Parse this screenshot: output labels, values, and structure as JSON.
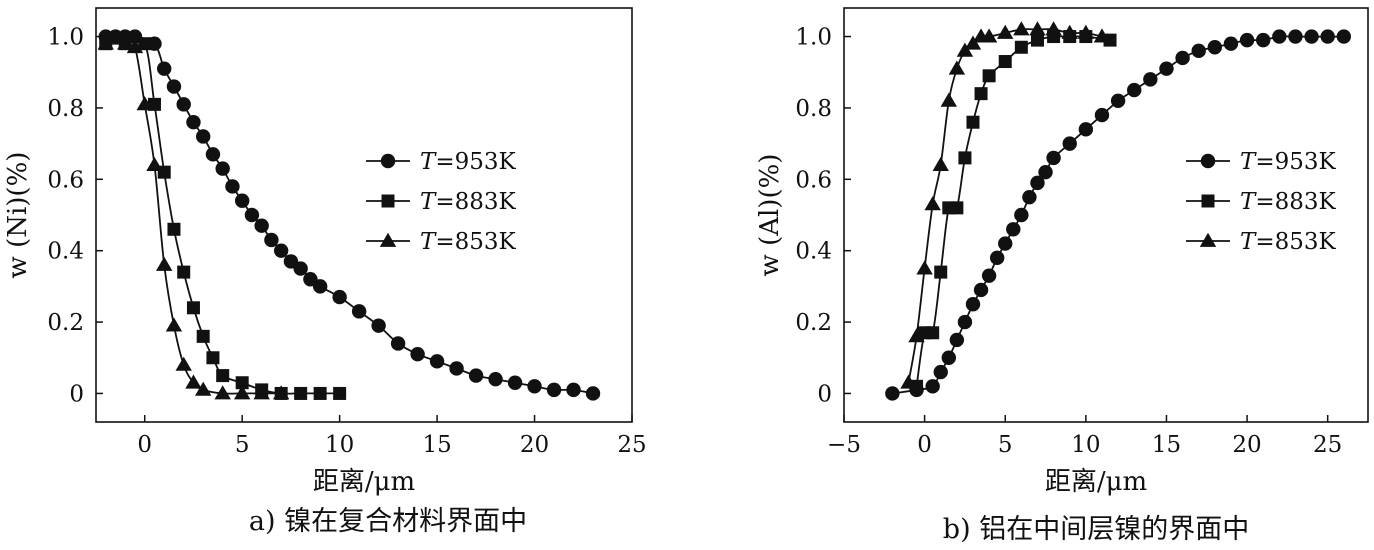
{
  "chart_data": [
    {
      "type": "line",
      "caption": "a) 镍在复合材料界面中",
      "xlabel": "距离/μm",
      "ylabel": "w (Ni)(%)",
      "xlim": [
        -2.5,
        25
      ],
      "ylim": [
        -0.08,
        1.08
      ],
      "xticks": [
        0,
        5,
        10,
        15,
        20,
        25
      ],
      "xtick_labels": [
        "0",
        "5",
        "10",
        "15",
        "20",
        "25"
      ],
      "yticks": [
        0,
        0.2,
        0.4,
        0.6,
        0.8,
        1.0
      ],
      "ytick_labels": [
        "0",
        "0.2",
        "0.4",
        "0.6",
        "0.8",
        "1.0"
      ],
      "legend_position": "right-middle",
      "series": [
        {
          "name": "T=953K",
          "marker": "circle",
          "x": [
            -2,
            -1.5,
            -1,
            -0.5,
            0.5,
            1,
            1.5,
            2,
            2.5,
            3,
            3.5,
            4,
            4.5,
            5,
            5.5,
            6,
            6.5,
            7,
            7.5,
            8,
            8.5,
            9,
            10,
            11,
            12,
            13,
            14,
            15,
            16,
            17,
            18,
            19,
            20,
            21,
            22,
            23
          ],
          "y": [
            1.0,
            1.0,
            1.0,
            1.0,
            0.98,
            0.91,
            0.86,
            0.81,
            0.76,
            0.72,
            0.67,
            0.63,
            0.58,
            0.54,
            0.5,
            0.47,
            0.43,
            0.4,
            0.37,
            0.35,
            0.32,
            0.3,
            0.27,
            0.23,
            0.19,
            0.14,
            0.11,
            0.09,
            0.07,
            0.05,
            0.04,
            0.03,
            0.02,
            0.01,
            0.01,
            0.0
          ]
        },
        {
          "name": "T=883K",
          "marker": "square",
          "x": [
            -2,
            -1,
            0,
            0.5,
            1,
            1.5,
            2,
            2.5,
            3,
            3.5,
            4,
            5,
            6,
            7,
            8,
            9,
            10
          ],
          "y": [
            0.98,
            0.98,
            0.98,
            0.81,
            0.62,
            0.46,
            0.34,
            0.24,
            0.16,
            0.1,
            0.05,
            0.03,
            0.01,
            0.0,
            0.0,
            0.0,
            0.0
          ]
        },
        {
          "name": "T=853K",
          "marker": "triangle",
          "x": [
            -2,
            -1,
            -0.5,
            0,
            0.5,
            1,
            1.5,
            2,
            2.5,
            3,
            4,
            5,
            6,
            7
          ],
          "y": [
            0.98,
            0.98,
            0.97,
            0.81,
            0.64,
            0.36,
            0.19,
            0.08,
            0.03,
            0.01,
            0.0,
            0.0,
            0.0,
            0.0
          ]
        }
      ]
    },
    {
      "type": "line",
      "caption": "b) 铝在中间层镍的界面中",
      "xlabel": "距离/μm",
      "ylabel": "w (Al)(%)",
      "xlim": [
        -5,
        27.5
      ],
      "ylim": [
        -0.08,
        1.08
      ],
      "xticks": [
        -5,
        0,
        5,
        10,
        15,
        20,
        25
      ],
      "xtick_labels": [
        "−5",
        "0",
        "5",
        "10",
        "15",
        "20",
        "25"
      ],
      "yticks": [
        0,
        0.2,
        0.4,
        0.6,
        0.8,
        1.0
      ],
      "ytick_labels": [
        "0",
        "0.2",
        "0.4",
        "0.6",
        "0.8",
        "1.0"
      ],
      "legend_position": "right-middle",
      "series": [
        {
          "name": "T=953K",
          "marker": "circle",
          "x": [
            -2,
            -0.5,
            0.5,
            1,
            1.5,
            2,
            2.5,
            3,
            3.5,
            4,
            4.5,
            5,
            5.5,
            6,
            6.5,
            7,
            7.5,
            8,
            9,
            10,
            11,
            12,
            13,
            14,
            15,
            16,
            17,
            18,
            19,
            20,
            21,
            22,
            23,
            24,
            25,
            26
          ],
          "y": [
            0.0,
            0.01,
            0.02,
            0.06,
            0.1,
            0.15,
            0.2,
            0.25,
            0.29,
            0.33,
            0.38,
            0.42,
            0.46,
            0.5,
            0.55,
            0.59,
            0.62,
            0.66,
            0.7,
            0.74,
            0.78,
            0.82,
            0.85,
            0.88,
            0.91,
            0.94,
            0.96,
            0.97,
            0.98,
            0.99,
            0.99,
            1.0,
            1.0,
            1.0,
            1.0,
            1.0
          ]
        },
        {
          "name": "T=883K",
          "marker": "square",
          "x": [
            -0.5,
            0,
            0.5,
            1,
            1.5,
            2,
            2.5,
            3,
            3.5,
            4,
            5,
            6,
            7,
            8,
            9,
            10,
            11.5
          ],
          "y": [
            0.02,
            0.17,
            0.17,
            0.34,
            0.52,
            0.52,
            0.66,
            0.76,
            0.84,
            0.89,
            0.93,
            0.97,
            0.99,
            1.0,
            1.0,
            1.0,
            0.99
          ]
        },
        {
          "name": "T=853K",
          "marker": "triangle",
          "x": [
            -1,
            -0.5,
            0,
            0.5,
            1,
            1.5,
            2,
            2.5,
            3,
            3.5,
            4,
            5,
            6,
            7,
            8,
            9,
            10,
            11
          ],
          "y": [
            0.03,
            0.16,
            0.35,
            0.53,
            0.64,
            0.82,
            0.91,
            0.96,
            0.98,
            1.0,
            1.0,
            1.01,
            1.02,
            1.02,
            1.02,
            1.01,
            1.01,
            1.0
          ]
        }
      ]
    }
  ]
}
